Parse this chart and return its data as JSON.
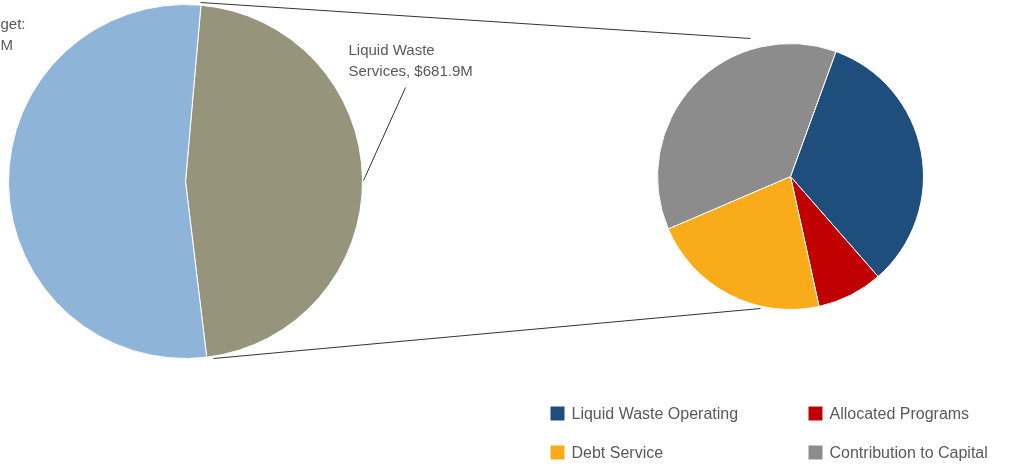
{
  "chart_data": [
    {
      "type": "pie",
      "categories": [
        "Liquid Waste\nServices, $681.9M",
        "get:\nM"
      ],
      "values": [
        46.7,
        53.3
      ],
      "colors": [
        "#96957c",
        "#8fb4d9"
      ]
    },
    {
      "type": "pie",
      "categories": [
        "Liquid Waste Operating",
        "Allocated Programs",
        "Debt Service",
        "Contribution to Capital"
      ],
      "values": [
        33,
        8,
        22,
        37
      ],
      "colors": [
        "#1f4e7d",
        "#c00000",
        "#f9ab19",
        "#8c8c8c"
      ],
      "legend": "bottom"
    }
  ]
}
